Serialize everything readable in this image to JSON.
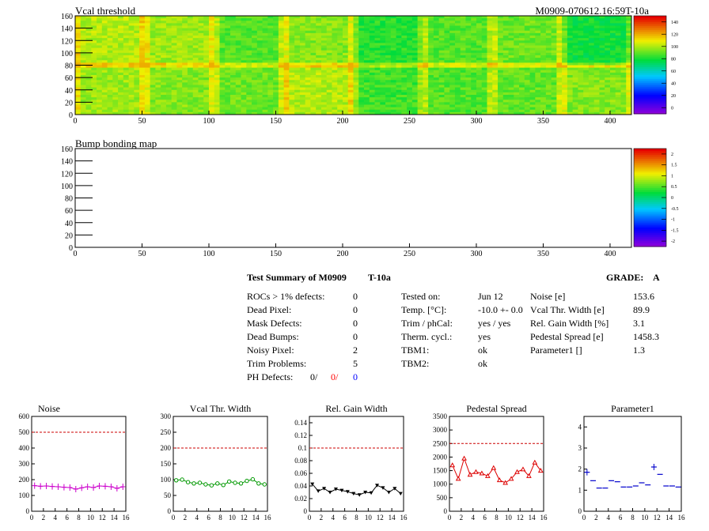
{
  "module_id": "M0909-070612.16:59T-10a",
  "maps": [
    {
      "title": "Vcal threshold",
      "x_ticks": [
        "0",
        "50",
        "100",
        "150",
        "200",
        "250",
        "300",
        "350",
        "400"
      ],
      "y_ticks": [
        "0",
        "20",
        "40",
        "60",
        "80",
        "100",
        "120",
        "140",
        "160"
      ],
      "xlim": [
        0,
        416
      ],
      "ylim": [
        0,
        160
      ],
      "palette": "mostly yellow-green with green ROC blocks; brighter yellow near ROC edges",
      "colorbar_ticks": [
        "0",
        "20",
        "40",
        "60",
        "80",
        "100",
        "120",
        "140"
      ]
    },
    {
      "title": "Bump bonding map",
      "x_ticks": [
        "0",
        "50",
        "100",
        "150",
        "200",
        "250",
        "300",
        "350",
        "400"
      ],
      "y_ticks": [
        "0",
        "20",
        "40",
        "60",
        "80",
        "100",
        "120",
        "140",
        "160"
      ],
      "xlim": [
        0,
        416
      ],
      "ylim": [
        0,
        160
      ],
      "palette": "empty (all white)",
      "colorbar_ticks": [
        "-2",
        "-1.5",
        "-1",
        "-0.5",
        "0",
        "0.5",
        "1",
        "1.5",
        "2"
      ]
    }
  ],
  "summary": {
    "title": "Test Summary of M0909",
    "temp_code": "T-10a",
    "grade_label": "GRADE:",
    "grade": "A",
    "left": [
      {
        "label": "ROCs > 1% defects:",
        "value": "0"
      },
      {
        "label": "Dead Pixel:",
        "value": "0"
      },
      {
        "label": "Mask Defects:",
        "value": "0"
      },
      {
        "label": "Dead Bumps:",
        "value": "0"
      },
      {
        "label": "Noisy Pixel:",
        "value": "2"
      },
      {
        "label": "Trim Problems:",
        "value": "5"
      }
    ],
    "ph_defects_label": "PH Defects:",
    "ph_defects_values": [
      "0/",
      "0/",
      "0"
    ],
    "ph_defects_colors": [
      "#000000",
      "#ff0000",
      "#0000ff"
    ],
    "middle": [
      {
        "label": "Tested on:",
        "value": "Jun 12"
      },
      {
        "label": "Temp. [°C]:",
        "value": "-10.0 +- 0.0"
      },
      {
        "label": "Trim / phCal:",
        "value": "yes / yes"
      },
      {
        "label": "Therm. cycl.:",
        "value": "yes"
      },
      {
        "label": "TBM1:",
        "value": "ok"
      },
      {
        "label": "TBM2:",
        "value": "ok"
      }
    ],
    "right": [
      {
        "label": "Noise [e]",
        "value": "153.6"
      },
      {
        "label": "Vcal Thr. Width [e]",
        "value": "89.9"
      },
      {
        "label": "Rel. Gain Width [%]",
        "value": "3.1"
      },
      {
        "label": "Pedestal Spread [e]",
        "value": "1458.3"
      },
      {
        "label": "Parameter1 []",
        "value": "1.3"
      }
    ]
  },
  "chart_data": [
    {
      "type": "line",
      "title": "Noise",
      "color": "#cc00cc",
      "marker": "plus",
      "x": [
        0,
        1,
        2,
        3,
        4,
        5,
        6,
        7,
        8,
        9,
        10,
        11,
        12,
        13,
        14,
        15
      ],
      "values": [
        162,
        158,
        160,
        157,
        155,
        152,
        150,
        140,
        148,
        155,
        150,
        160,
        158,
        155,
        145,
        155
      ],
      "ylim": [
        0,
        600
      ],
      "y_ticks": [
        0,
        100,
        200,
        300,
        400,
        500,
        600
      ],
      "x_ticks": [
        0,
        2,
        4,
        6,
        8,
        10,
        12,
        14,
        16
      ],
      "threshold": 500
    },
    {
      "type": "line",
      "title": "Vcal Thr. Width",
      "color": "#009900",
      "marker": "circle",
      "x": [
        0,
        1,
        2,
        3,
        4,
        5,
        6,
        7,
        8,
        9,
        10,
        11,
        12,
        13,
        14,
        15
      ],
      "values": [
        98,
        100,
        92,
        88,
        90,
        85,
        82,
        88,
        83,
        94,
        90,
        88,
        96,
        101,
        88,
        85
      ],
      "ylim": [
        0,
        300
      ],
      "y_ticks": [
        0,
        50,
        100,
        150,
        200,
        250,
        300
      ],
      "x_ticks": [
        0,
        2,
        4,
        6,
        8,
        10,
        12,
        14,
        16
      ],
      "threshold": 200
    },
    {
      "type": "line",
      "title": "Rel. Gain Width",
      "color": "#000000",
      "marker": "triangle-down",
      "x": [
        0,
        1,
        2,
        3,
        4,
        5,
        6,
        7,
        8,
        9,
        10,
        11,
        12,
        13,
        14,
        15
      ],
      "values": [
        0.043,
        0.032,
        0.036,
        0.03,
        0.035,
        0.033,
        0.031,
        0.028,
        0.026,
        0.03,
        0.029,
        0.041,
        0.037,
        0.03,
        0.036,
        0.028
      ],
      "ylim": [
        0,
        0.15
      ],
      "y_ticks": [
        0,
        0.02,
        0.04,
        0.06,
        0.08,
        0.1,
        0.12,
        0.14
      ],
      "x_ticks": [
        0,
        2,
        4,
        6,
        8,
        10,
        12,
        14,
        16
      ],
      "threshold": 0.1
    },
    {
      "type": "line",
      "title": "Pedestal Spread",
      "color": "#dd0000",
      "marker": "triangle-up",
      "x": [
        0,
        1,
        2,
        3,
        4,
        5,
        6,
        7,
        8,
        9,
        10,
        11,
        12,
        13,
        14,
        15
      ],
      "values": [
        1700,
        1200,
        1950,
        1350,
        1450,
        1400,
        1300,
        1600,
        1150,
        1050,
        1200,
        1450,
        1550,
        1300,
        1800,
        1500
      ],
      "ylim": [
        0,
        3500
      ],
      "y_ticks": [
        0,
        500,
        1000,
        1500,
        2000,
        2500,
        3000,
        3500
      ],
      "x_ticks": [
        0,
        2,
        4,
        6,
        8,
        10,
        12,
        14,
        16
      ],
      "threshold": 2500
    },
    {
      "type": "scatter",
      "title": "Parameter1",
      "color": "#0000cc",
      "marker": "hbar",
      "x": [
        0,
        1,
        2,
        3,
        4,
        5,
        6,
        7,
        8,
        9,
        10,
        11,
        12,
        13,
        14,
        15
      ],
      "values": [
        1.85,
        1.45,
        1.1,
        1.1,
        1.45,
        1.4,
        1.15,
        1.15,
        1.2,
        1.35,
        1.25,
        2.1,
        1.75,
        1.2,
        1.2,
        1.15
      ],
      "ylim": [
        0,
        4.5
      ],
      "y_ticks": [
        0,
        1,
        2,
        3,
        4
      ],
      "x_ticks": [
        0,
        2,
        4,
        6,
        8,
        10,
        12,
        14,
        16
      ],
      "threshold": null
    }
  ]
}
